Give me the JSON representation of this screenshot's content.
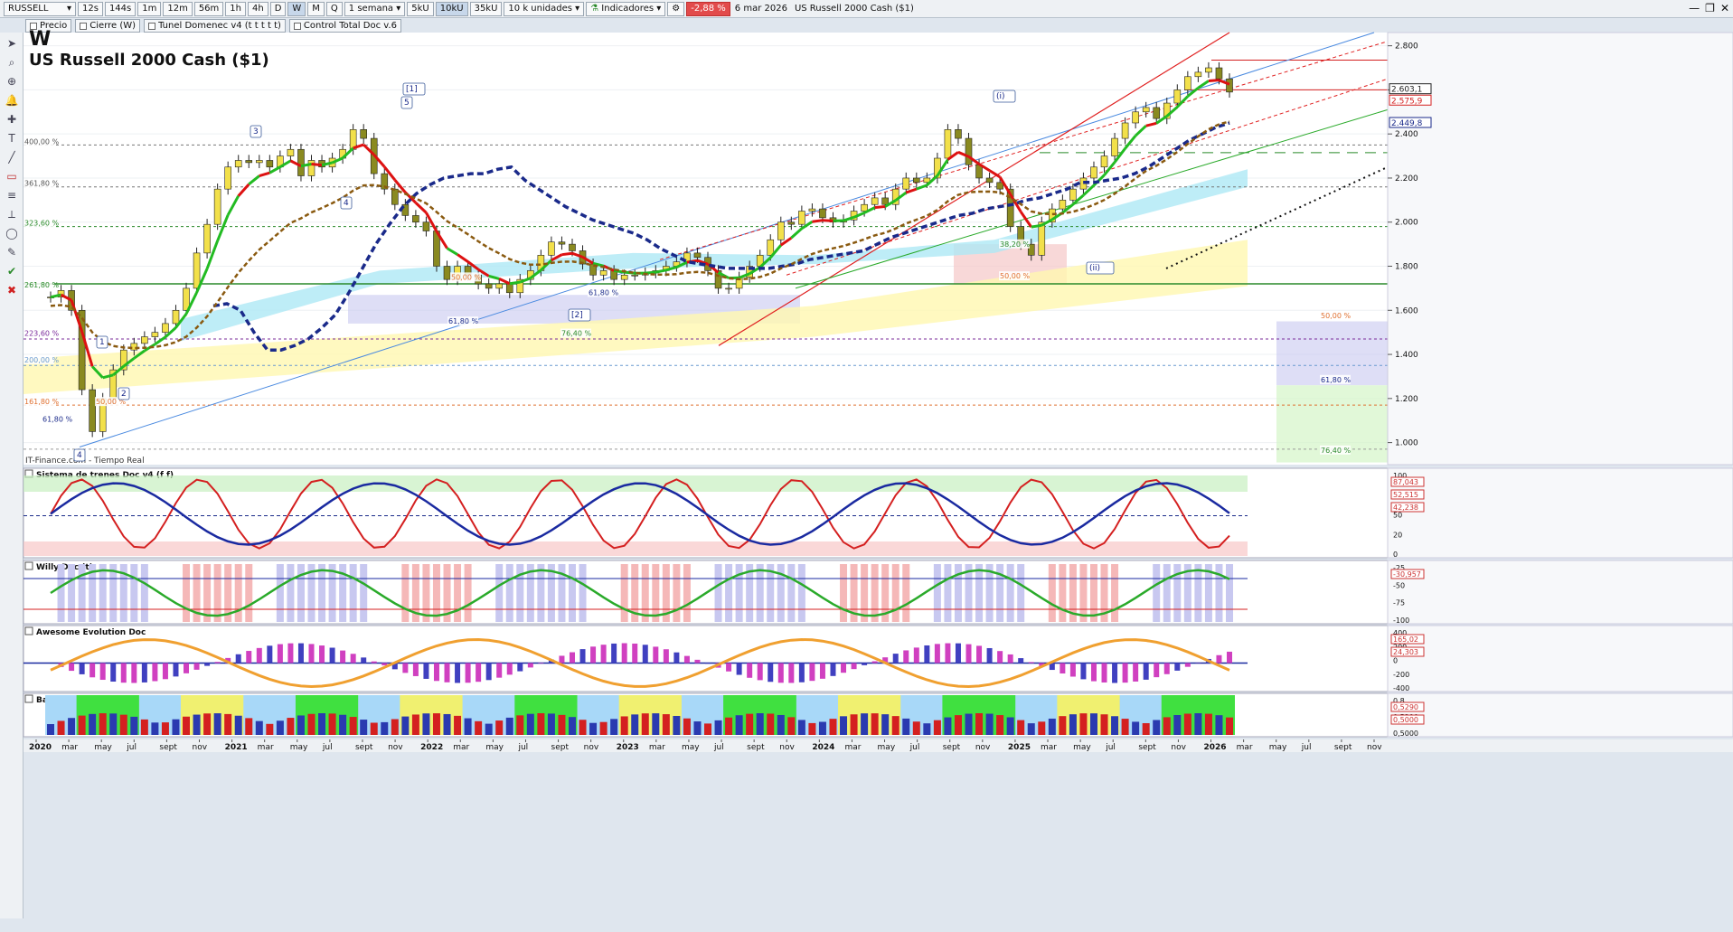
{
  "toolbar": {
    "symbol": "RUSSELL",
    "timeframes": [
      "12s",
      "144s",
      "1m",
      "12m",
      "56m",
      "1h",
      "4h",
      "D",
      "W",
      "M",
      "Q"
    ],
    "selected_timeframe": "W",
    "period": "1 semana",
    "unit_buttons": [
      "5kU",
      "10kU",
      "35kU"
    ],
    "units": "10 k unidades",
    "indicators_label": "Indicadores",
    "change": "-2,88 %",
    "date": "6 mar 2026",
    "instrument": "US Russell 2000 Cash ($1)"
  },
  "legend": [
    "Precio",
    "Cierre (W)",
    "Tunel Domenec v4 (t t t t t)",
    "Control Total Doc v.6"
  ],
  "chart_data": {
    "type": "line",
    "title": "W",
    "subtitle": "US Russell 2000 Cash ($1)",
    "watermark": "IT-Finance.com - Tiempo Real",
    "x_ticks": [
      "2020",
      "mar",
      "may",
      "jul",
      "sept",
      "nov",
      "2021",
      "mar",
      "may",
      "jul",
      "sept",
      "nov",
      "2022",
      "mar",
      "may",
      "jul",
      "sept",
      "nov",
      "2023",
      "mar",
      "may",
      "jul",
      "sept",
      "nov",
      "2024",
      "mar",
      "may",
      "jul",
      "sept",
      "nov",
      "2025",
      "mar",
      "may",
      "jul",
      "sept",
      "nov",
      "2026",
      "mar",
      "may",
      "jul",
      "sept",
      "nov"
    ],
    "y_ticks": [
      "2.800",
      "2.600",
      "2.400",
      "2.200",
      "2.000",
      "1.800",
      "1.600",
      "1.400",
      "1.200",
      "1.000"
    ],
    "ylim": [
      900,
      2860
    ],
    "price_labels": [
      "2.603,1",
      "2.575,9",
      "2.449,8"
    ],
    "series": [
      {
        "values": [
          1660,
          1690,
          1600,
          1240,
          1050,
          1200,
          1330,
          1420,
          1450,
          1480,
          1500,
          1540,
          1600,
          1700,
          1860,
          1990,
          2150,
          2250,
          2280,
          2270,
          2280,
          2250,
          2300,
          2330,
          2210,
          2280,
          2250,
          2290,
          2330,
          2420,
          2380,
          2220,
          2150,
          2080,
          2030,
          2000,
          1960,
          1800,
          1740,
          1800,
          1760,
          1720,
          1700,
          1720,
          1680,
          1740,
          1780,
          1850,
          1910,
          1900,
          1870,
          1810,
          1760,
          1780,
          1740,
          1760,
          1760,
          1770,
          1780,
          1800,
          1820,
          1860,
          1840,
          1780,
          1700,
          1700,
          1750,
          1800,
          1850,
          1920,
          2000,
          1990,
          2050,
          2060,
          2020,
          2000,
          2010,
          2050,
          2080,
          2110,
          2080,
          2150,
          2200,
          2180,
          2200,
          2290,
          2420,
          2380,
          2260,
          2200,
          2180,
          2150,
          1980,
          1900,
          1850,
          2000,
          2060,
          2100,
          2150,
          2200,
          2250,
          2300,
          2380,
          2450,
          2500,
          2520,
          2470,
          2540,
          2600,
          2660,
          2680,
          2700,
          2650,
          2590
        ]
      },
      {
        "name": "Tunel",
        "values": [
          1620,
          1630,
          1600,
          1500,
          1420,
          1420,
          1440,
          1470,
          1520,
          1580,
          1680,
          1790,
          1900,
          1990,
          2070,
          2130,
          2170,
          2200,
          2210,
          2220,
          2220,
          2240,
          2250,
          2190,
          2150,
          2110,
          2070,
          2040,
          2010,
          1990,
          1970,
          1950,
          1920,
          1880,
          1850,
          1820,
          1810,
          1800,
          1790,
          1790,
          1790,
          1790,
          1800,
          1810,
          1830,
          1840,
          1850,
          1860,
          1870,
          1900,
          1930,
          1950,
          1970,
          1990,
          2010,
          2030,
          2040,
          2060,
          2070,
          2080,
          2100,
          2110,
          2130,
          2150,
          2180,
          2180,
          2190,
          2200,
          2220,
          2250,
          2290,
          2330,
          2370,
          2400,
          2430,
          2450
        ]
      }
    ],
    "fib_labels": [
      "400,00 %",
      "361,80 %",
      "323,60 %",
      "261,80 %",
      "223,60 %",
      "200,00 %",
      "161,80 %",
      "61,80 %",
      "50,00 %",
      "61,80 %",
      "76,40 %",
      "38,20 %",
      "50,00 %",
      "61,80 %",
      "50,00 %",
      "61,80 %",
      "76,40 %",
      "50,00 %"
    ],
    "wave_labels": [
      "3",
      "5",
      "[1]",
      "4",
      "1",
      "2",
      "4",
      "(i)",
      "(ii)",
      "[2]"
    ],
    "panels": [
      {
        "name": "Sistema de trenes Doc v4 (f f)",
        "y_ticks": [
          "100",
          "80",
          "50",
          "20",
          "0"
        ],
        "value_labels": [
          "87,043",
          "52,515",
          "42,238"
        ]
      },
      {
        "name": "Willy Doc (t)",
        "y_ticks": [
          "-25",
          "-50",
          "-75",
          "-100"
        ],
        "value_labels": [
          "-30,957"
        ]
      },
      {
        "name": "Awesome Evolution Doc",
        "y_ticks": [
          "400",
          "200",
          "0",
          "-200",
          "-400"
        ],
        "value_labels": [
          "165,02",
          "24,303"
        ]
      },
      {
        "name": "Barra Fuerza Fondo Mercado v4 (f)",
        "y_ticks": [
          "0,8",
          "0,5290",
          "0,5000"
        ],
        "value_labels": [
          "0,5290",
          "0,5000"
        ]
      }
    ]
  },
  "colors": {
    "up": "#22aa22",
    "down": "#d42020",
    "ema_green": "#22bb22",
    "ema_red": "#dd1111",
    "blue_dash": "#1a2a8a",
    "brown_dash": "#8a5a10",
    "cyan_band": "#aee8f5",
    "yellow_band": "#fff7b0",
    "lavender": "#c8c8f0",
    "pink": "#f5c8c8",
    "lightgreen": "#d4f5c8"
  },
  "icons": [
    "arrow-icon",
    "search-icon",
    "zoom-icon",
    "bell-icon",
    "cross-icon",
    "text-icon",
    "trendline-icon",
    "delete-icon"
  ]
}
